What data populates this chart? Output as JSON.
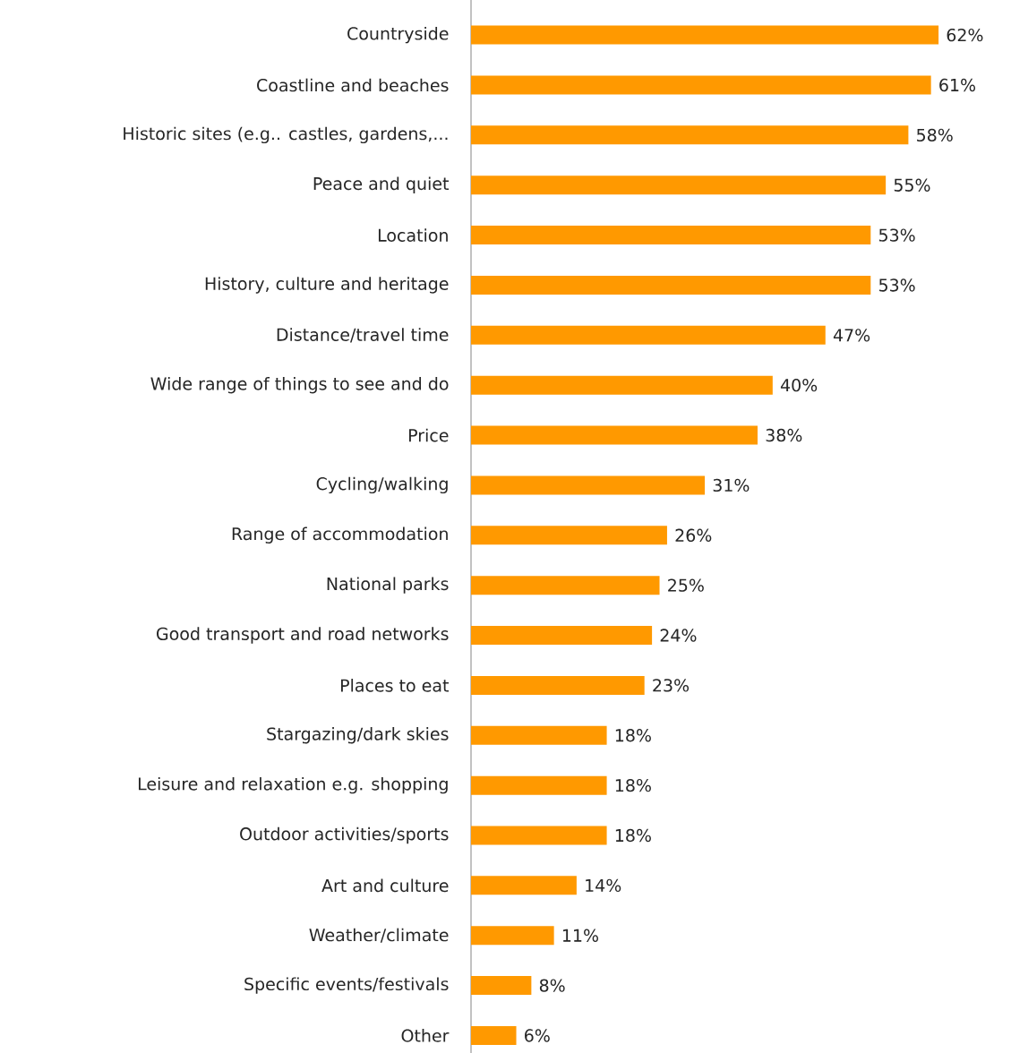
{
  "chart_data": {
    "type": "bar",
    "orientation": "horizontal",
    "color": "#ff9900",
    "categories": [
      "Countryside",
      "Coastline and beaches",
      "Historic sites (e.g.. castles, gardens,...",
      "Peace and quiet",
      "Location",
      "History, culture and heritage",
      "Distance/travel time",
      "Wide range of things to see and do",
      "Price",
      "Cycling/walking",
      "Range of accommodation",
      "National parks",
      "Good transport and road networks",
      "Places to eat",
      "Stargazing/dark skies",
      "Leisure and relaxation e.g. shopping",
      "Outdoor activities/sports",
      "Art and culture",
      "Weather/climate",
      "Specific events/festivals",
      "Other"
    ],
    "values": [
      62,
      61,
      58,
      55,
      53,
      53,
      47,
      40,
      38,
      31,
      26,
      25,
      24,
      23,
      18,
      18,
      18,
      14,
      11,
      8,
      6
    ],
    "value_labels": [
      "62%",
      "61%",
      "58%",
      "55%",
      "53%",
      "53%",
      "47%",
      "40%",
      "38%",
      "31%",
      "26%",
      "25%",
      "24%",
      "23%",
      "18%",
      "18%",
      "18%",
      "14%",
      "11%",
      "8%",
      "6%"
    ]
  }
}
